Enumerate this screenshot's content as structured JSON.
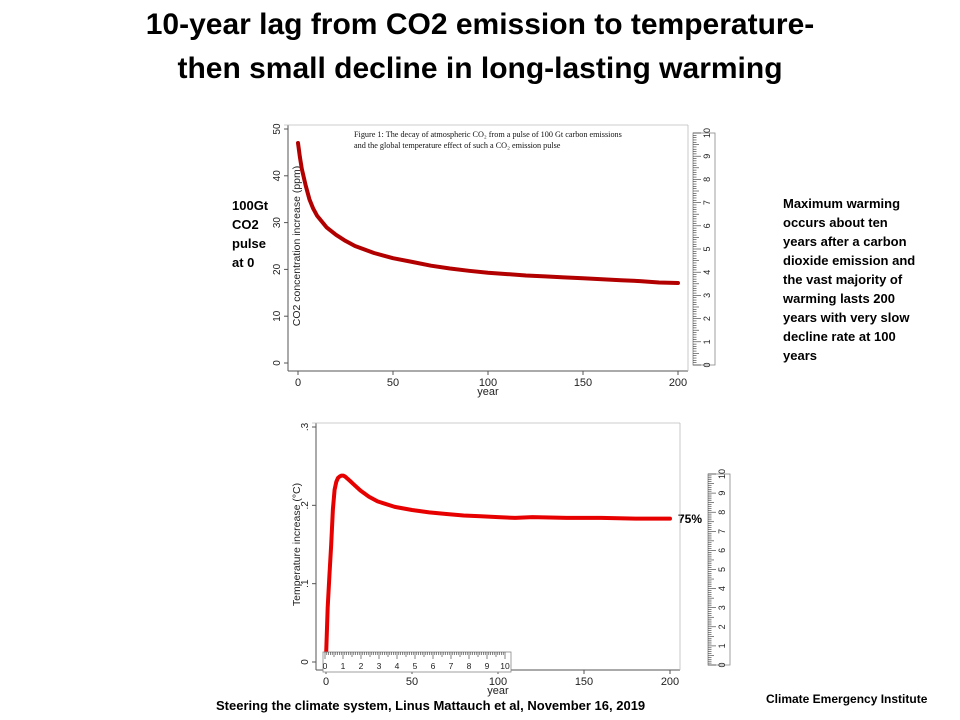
{
  "title": {
    "line1": "10-year lag from CO2 emission to temperature-",
    "line2": "then small decline in long-lasting warming"
  },
  "notes": {
    "pulse": [
      "100Gt",
      "CO2",
      "pulse",
      "at 0"
    ],
    "warming": [
      "Maximum warming",
      "occurs about ten",
      "years after a carbon",
      "dioxide emission  and",
      "the vast majority of",
      "warming lasts 200",
      "years  with very slow",
      "decline rate at 100",
      "years"
    ],
    "percent_label": "75%"
  },
  "citation": "Steering the climate system,  Linus Mattauch et al,  November 16, 2019",
  "institute": "Climate Emergency Institute",
  "rulers": {
    "labels": [
      "0",
      "1",
      "2",
      "3",
      "4",
      "5",
      "6",
      "7",
      "8",
      "9",
      "10"
    ]
  },
  "chart_data": [
    {
      "type": "line",
      "caption": [
        "Figure 1:  The decay of atmospheric CO₂ from a pulse of 100 Gt carbon emissions",
        "and the global temperature effect of such a CO₂ emission pulse"
      ],
      "xlabel": "year",
      "ylabel": "CO2 concentration increase (ppm)",
      "xlim": [
        0,
        200
      ],
      "ylim": [
        0,
        50
      ],
      "xticks": [
        0,
        50,
        100,
        150,
        200
      ],
      "yticks": [
        0,
        10,
        20,
        30,
        40,
        50
      ],
      "line_color": "#b20000",
      "series": [
        {
          "x": [
            0,
            1,
            2,
            4,
            6,
            8,
            10,
            15,
            20,
            25,
            30,
            40,
            50,
            60,
            70,
            80,
            90,
            100,
            110,
            120,
            130,
            140,
            150,
            160,
            170,
            180,
            190,
            200
          ],
          "y": [
            47,
            44,
            41.5,
            38,
            35,
            33,
            31.5,
            29,
            27.4,
            26.1,
            25,
            23.5,
            22.4,
            21.6,
            20.8,
            20.2,
            19.7,
            19.3,
            19,
            18.7,
            18.5,
            18.3,
            18.1,
            17.9,
            17.7,
            17.5,
            17.2,
            17.1
          ]
        }
      ]
    },
    {
      "type": "line",
      "xlabel": "year",
      "ylabel": "Temperature increase (°C)",
      "xlim": [
        0,
        200
      ],
      "ylim": [
        0,
        0.3
      ],
      "xticks": [
        0,
        50,
        100,
        150,
        200
      ],
      "yticks": [
        0,
        0.1,
        0.2,
        0.3
      ],
      "ytick_labels": [
        "0",
        ".1",
        ".2",
        ".3"
      ],
      "line_color": "#e60000",
      "series": [
        {
          "x": [
            0,
            1,
            2,
            3,
            4,
            5,
            6,
            7,
            8,
            9,
            10,
            11,
            12,
            14,
            16,
            20,
            25,
            30,
            40,
            50,
            60,
            70,
            80,
            90,
            100,
            110,
            120,
            140,
            160,
            180,
            200
          ],
          "y": [
            0.005,
            0.07,
            0.11,
            0.15,
            0.195,
            0.22,
            0.23,
            0.235,
            0.237,
            0.238,
            0.238,
            0.237,
            0.235,
            0.231,
            0.227,
            0.219,
            0.211,
            0.205,
            0.198,
            0.194,
            0.191,
            0.189,
            0.187,
            0.186,
            0.185,
            0.184,
            0.185,
            0.184,
            0.184,
            0.183,
            0.183
          ]
        }
      ]
    }
  ]
}
